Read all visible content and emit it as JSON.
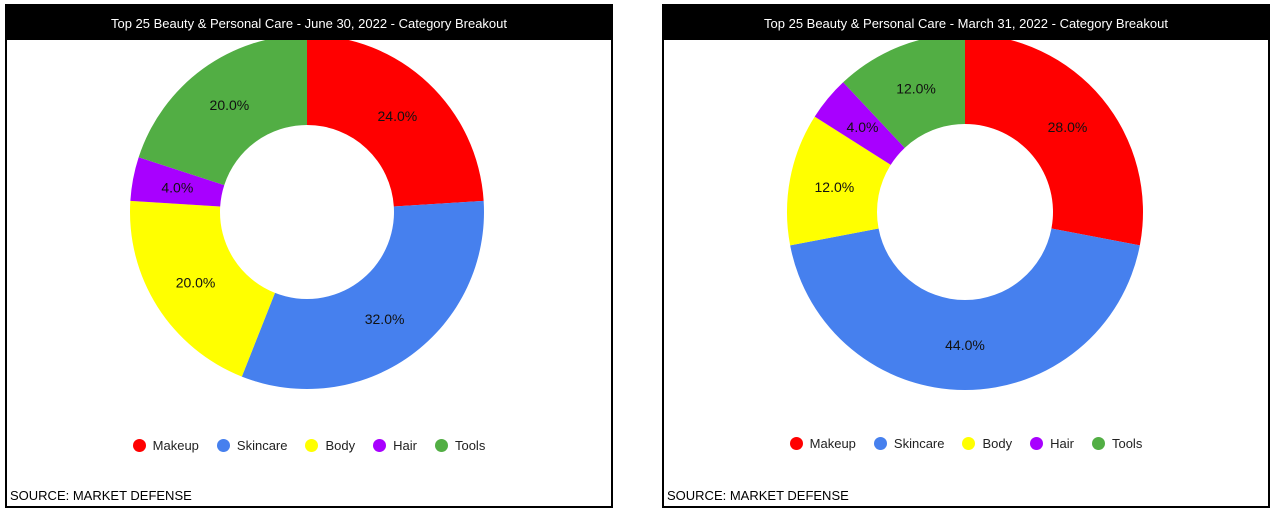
{
  "colors": {
    "Makeup": "#ff0000",
    "Skincare": "#4680ee",
    "Body": "#ffff00",
    "Hair": "#a800ff",
    "Tools": "#52ae44"
  },
  "chart_data": [
    {
      "type": "pie",
      "title": "Top 25 Beauty & Personal Care - June 30, 2022 - Category Breakout",
      "categories": [
        "Makeup",
        "Skincare",
        "Body",
        "Hair",
        "Tools"
      ],
      "values": [
        24.0,
        32.0,
        20.0,
        4.0,
        20.0
      ],
      "labels": [
        "24.0%",
        "32.0%",
        "20.0%",
        "4.0%",
        "20.0%"
      ],
      "legend_position": "bottom",
      "donut": true,
      "source": "SOURCE: MARKET DEFENSE"
    },
    {
      "type": "pie",
      "title": "Top 25 Beauty & Personal Care - March 31, 2022 - Category Breakout",
      "categories": [
        "Makeup",
        "Skincare",
        "Body",
        "Hair",
        "Tools"
      ],
      "values": [
        28.0,
        44.0,
        12.0,
        4.0,
        12.0
      ],
      "labels": [
        "28.0%",
        "44.0%",
        "12.0%",
        "4.0%",
        "12.0%"
      ],
      "legend_position": "bottom",
      "donut": true,
      "source": "SOURCE: MARKET DEFENSE"
    }
  ]
}
